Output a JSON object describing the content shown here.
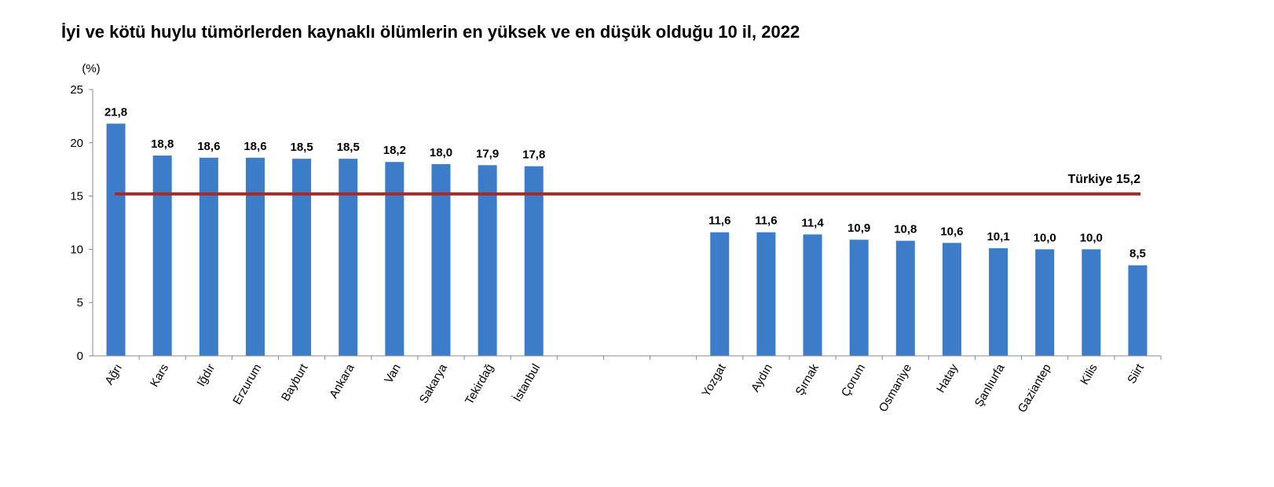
{
  "chart_data": {
    "type": "bar",
    "title": "İyi ve kötü huylu tümörlerden kaynaklı ölümlerin en yüksek ve en düşük olduğu 10 il, 2022",
    "ylabel": "(%)",
    "ylim": [
      0,
      25
    ],
    "yticks": [
      "0",
      "5",
      "10",
      "15",
      "20",
      "25"
    ],
    "categories": [
      "Ağrı",
      "Kars",
      "Iğdır",
      "Erzurum",
      "Bayburt",
      "Ankara",
      "Van",
      "Sakarya",
      "Tekirdağ",
      "İstanbul",
      "",
      "",
      "",
      "Yozgat",
      "Aydın",
      "Şırnak",
      "Çorum",
      "Osmaniye",
      "Hatay",
      "Şanlıurfa",
      "Gaziantep",
      "Kilis",
      "Siirt"
    ],
    "values": [
      21.8,
      18.8,
      18.6,
      18.6,
      18.5,
      18.5,
      18.2,
      18.0,
      17.9,
      17.8,
      null,
      null,
      null,
      11.6,
      11.6,
      11.4,
      10.9,
      10.8,
      10.6,
      10.1,
      10.0,
      10.0,
      8.5
    ],
    "value_labels": [
      "21,8",
      "18,8",
      "18,6",
      "18,6",
      "18,5",
      "18,5",
      "18,2",
      "18,0",
      "17,9",
      "17,8",
      "",
      "",
      "",
      "11,6",
      "11,6",
      "11,4",
      "10,9",
      "10,8",
      "10,6",
      "10,1",
      "10,0",
      "10,0",
      "8,5"
    ],
    "reference_line": {
      "value": 15.2,
      "label": "Türkiye 15,2",
      "color": "#a52a2a"
    },
    "bar_color": "#3d7cc9",
    "grid": false,
    "legend": "none"
  }
}
